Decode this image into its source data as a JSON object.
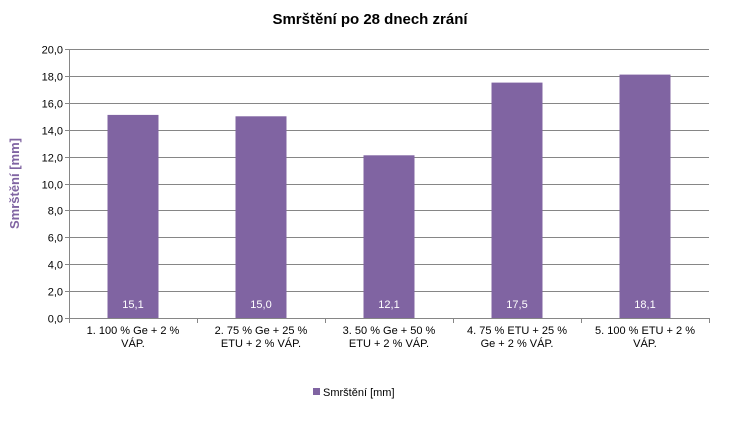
{
  "chart_data": {
    "type": "bar",
    "title": "Smrštění po 28 dnech zrání",
    "xlabel": "",
    "ylabel": "Smrštění [mm]",
    "ylim": [
      0,
      20
    ],
    "ytick_step": 2,
    "yticks": [
      "0,0",
      "2,0",
      "4,0",
      "6,0",
      "8,0",
      "10,0",
      "12,0",
      "14,0",
      "16,0",
      "18,0",
      "20,0"
    ],
    "grid": true,
    "categories": [
      [
        "1. 100 % Ge + 2 %",
        "VÁP."
      ],
      [
        "2. 75 % Ge + 25 %",
        "ETU + 2 % VÁP."
      ],
      [
        "3. 50 % Ge + 50 %",
        "ETU + 2 % VÁP."
      ],
      [
        "4. 75 % ETU + 25 %",
        "Ge + 2 % VÁP."
      ],
      [
        "5. 100 % ETU + 2 %",
        "VÁP."
      ]
    ],
    "series": [
      {
        "name": "Smrštění [mm]",
        "values": [
          15.1,
          15.0,
          12.1,
          17.5,
          18.1
        ],
        "labels": [
          "15,1",
          "15,0",
          "12,1",
          "17,5",
          "18,1"
        ]
      }
    ],
    "legend_position": "bottom",
    "colors": {
      "bar": "#8064a2",
      "grid": "#868686",
      "axis": "#868686",
      "ylabel": "#8064a2",
      "data_label": "#ffffff"
    }
  }
}
